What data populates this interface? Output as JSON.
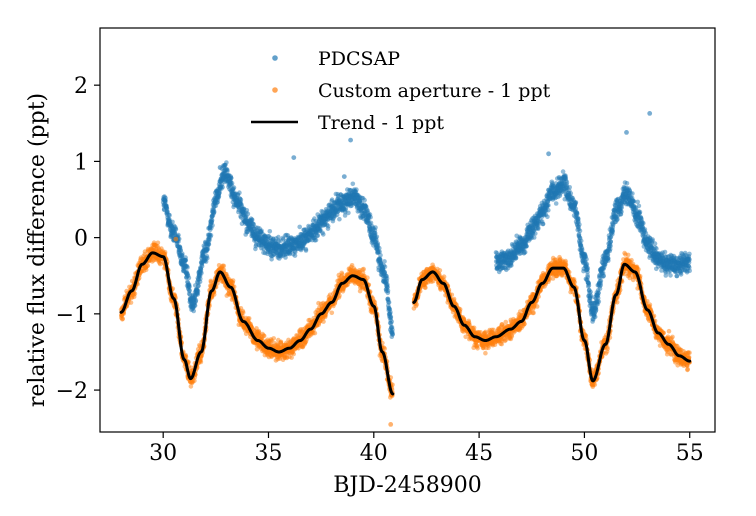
{
  "chart_data": {
    "type": "scatter",
    "xlabel": "BJD-2458900",
    "ylabel": "relative flux difference (ppt)",
    "xlim": [
      27.0,
      56.2
    ],
    "ylim": [
      -2.55,
      2.75
    ],
    "xticks": [
      30,
      35,
      40,
      45,
      50,
      55
    ],
    "yticks": [
      -2,
      -1,
      0,
      1,
      2
    ],
    "xtick_labels": [
      "30",
      "35",
      "40",
      "45",
      "50",
      "55"
    ],
    "ytick_labels": [
      "−2",
      "−1",
      "0",
      "1",
      "2"
    ],
    "grid": false,
    "legend_position": "top-center",
    "colors": {
      "pdcsap": "#1f77b4",
      "custom": "#ff7f0e",
      "trend": "#000000"
    },
    "series": [
      {
        "name": "PDCSAP",
        "kind": "scatter",
        "color": "#1f77b4",
        "segments": [
          {
            "x": [
              30.0,
              30.5,
              31.0,
              31.4,
              32.0,
              32.5,
              32.9,
              33.5,
              34.0,
              34.5,
              35.0,
              35.5,
              36.0,
              36.5,
              37.0,
              37.5,
              38.0,
              38.5,
              39.0,
              39.5,
              40.0,
              40.5,
              40.9
            ],
            "y": [
              0.45,
              0.05,
              -0.35,
              -0.85,
              -0.2,
              0.5,
              0.85,
              0.5,
              0.2,
              0.0,
              -0.1,
              -0.15,
              -0.12,
              -0.05,
              0.05,
              0.2,
              0.35,
              0.45,
              0.55,
              0.4,
              0.0,
              -0.5,
              -1.2
            ]
          },
          {
            "x": [
              45.8,
              46.5,
              47.0,
              47.5,
              48.0,
              48.5,
              49.0,
              49.5,
              50.0,
              50.4,
              51.0,
              51.5,
              52.0,
              52.5,
              53.0,
              53.5,
              54.0,
              54.5,
              55.0
            ],
            "y": [
              -0.35,
              -0.25,
              -0.1,
              0.1,
              0.35,
              0.6,
              0.7,
              0.4,
              -0.3,
              -0.95,
              -0.3,
              0.35,
              0.6,
              0.3,
              -0.1,
              -0.3,
              -0.35,
              -0.35,
              -0.3
            ]
          }
        ],
        "outliers": [
          {
            "x": 30.1,
            "y": 0.52
          },
          {
            "x": 32.7,
            "y": 0.92
          },
          {
            "x": 33.2,
            "y": 0.8
          },
          {
            "x": 36.2,
            "y": 1.05
          },
          {
            "x": 38.6,
            "y": 0.8
          },
          {
            "x": 38.9,
            "y": 1.28
          },
          {
            "x": 48.3,
            "y": 1.1
          },
          {
            "x": 52.0,
            "y": 1.38
          },
          {
            "x": 53.1,
            "y": 1.63
          }
        ]
      },
      {
        "name": "Custom aperture - 1 ppt",
        "kind": "scatter",
        "color": "#ff7f0e",
        "segments": [
          {
            "x": [
              28.0,
              28.5,
              29.0,
              29.5,
              30.0,
              30.5,
              31.0,
              31.3,
              31.8,
              32.3,
              32.7,
              33.2,
              33.8,
              34.5,
              35.0,
              35.5,
              36.0,
              36.5,
              37.0,
              37.5,
              38.0,
              38.5,
              39.0,
              39.5,
              40.0,
              40.4,
              40.9
            ],
            "y": [
              -0.98,
              -0.7,
              -0.35,
              -0.2,
              -0.25,
              -0.8,
              -1.6,
              -1.85,
              -1.5,
              -0.7,
              -0.45,
              -0.65,
              -1.1,
              -1.35,
              -1.45,
              -1.5,
              -1.45,
              -1.35,
              -1.2,
              -1.0,
              -0.85,
              -0.6,
              -0.5,
              -0.55,
              -0.9,
              -1.5,
              -2.05
            ]
          },
          {
            "x": [
              41.9,
              42.3,
              42.8,
              43.3,
              43.8,
              44.3,
              44.8,
              45.3,
              45.8,
              46.5,
              47.0,
              47.5,
              48.0,
              48.5,
              49.0,
              49.5,
              50.0,
              50.4,
              51.0,
              51.5,
              51.9,
              52.4,
              53.0,
              53.5,
              54.0,
              54.5,
              55.0
            ],
            "y": [
              -0.85,
              -0.55,
              -0.45,
              -0.6,
              -0.9,
              -1.15,
              -1.3,
              -1.35,
              -1.3,
              -1.2,
              -1.1,
              -0.85,
              -0.6,
              -0.4,
              -0.4,
              -0.65,
              -1.35,
              -1.88,
              -1.4,
              -0.75,
              -0.35,
              -0.45,
              -0.95,
              -1.25,
              -1.4,
              -1.55,
              -1.62
            ]
          }
        ],
        "outliers": [
          {
            "x": 40.8,
            "y": -2.45
          },
          {
            "x": 30.6,
            "y": -0.02
          }
        ]
      },
      {
        "name": "Trend - 1 ppt",
        "kind": "line",
        "color": "#000000",
        "segments": [
          {
            "x": [
              28.0,
              28.5,
              29.0,
              29.5,
              30.0,
              30.5,
              31.0,
              31.3,
              31.8,
              32.3,
              32.7,
              33.2,
              33.8,
              34.5,
              35.0,
              35.5,
              36.0,
              36.5,
              37.0,
              37.5,
              38.0,
              38.5,
              39.0,
              39.5,
              40.0,
              40.4,
              40.9
            ],
            "y": [
              -0.98,
              -0.7,
              -0.35,
              -0.2,
              -0.25,
              -0.8,
              -1.6,
              -1.85,
              -1.5,
              -0.7,
              -0.45,
              -0.65,
              -1.1,
              -1.35,
              -1.45,
              -1.5,
              -1.45,
              -1.35,
              -1.2,
              -1.0,
              -0.85,
              -0.6,
              -0.5,
              -0.55,
              -0.9,
              -1.5,
              -2.05
            ]
          },
          {
            "x": [
              41.9,
              42.3,
              42.8,
              43.3,
              43.8,
              44.3,
              44.8,
              45.3,
              45.8,
              46.5,
              47.0,
              47.5,
              48.0,
              48.5,
              49.0,
              49.5,
              50.0,
              50.4,
              51.0,
              51.5,
              51.9,
              52.4,
              53.0,
              53.5,
              54.0,
              54.5,
              55.0
            ],
            "y": [
              -0.85,
              -0.55,
              -0.45,
              -0.6,
              -0.9,
              -1.15,
              -1.3,
              -1.35,
              -1.3,
              -1.2,
              -1.1,
              -0.85,
              -0.6,
              -0.4,
              -0.4,
              -0.65,
              -1.35,
              -1.88,
              -1.4,
              -0.75,
              -0.35,
              -0.45,
              -0.95,
              -1.25,
              -1.4,
              -1.55,
              -1.62
            ]
          }
        ]
      }
    ]
  }
}
